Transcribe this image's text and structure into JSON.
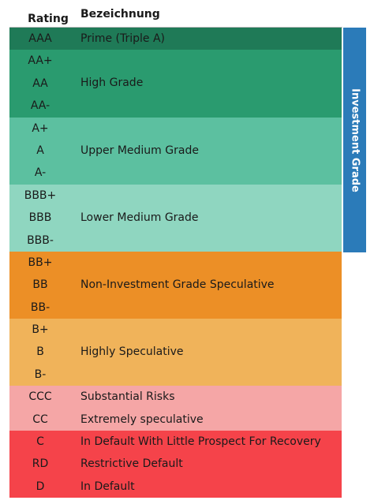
{
  "header": {
    "rating": "Rating",
    "bezeichnung": "Bezeichnung"
  },
  "side_label": "Investment Grade",
  "colors": {
    "aaa": "#1f7a57",
    "high": "#2a9b6f",
    "upper": "#5cc0a0",
    "lower": "#8fd6c0",
    "spec": "#ec8f26",
    "highly": "#f0b35a",
    "substantial": "#f5a6a6",
    "default": "#f5434a",
    "ig": "#2b7bb9"
  },
  "groups": [
    {
      "color_key": "aaa",
      "label": "Prime (Triple A)",
      "ratings": [
        "AAA"
      ]
    },
    {
      "color_key": "high",
      "label": "High Grade",
      "ratings": [
        "AA+",
        "AA",
        "AA-"
      ]
    },
    {
      "color_key": "upper",
      "label": "Upper Medium Grade",
      "ratings": [
        "A+",
        "A",
        "A-"
      ]
    },
    {
      "color_key": "lower",
      "label": "Lower Medium Grade",
      "ratings": [
        "BBB+",
        "BBB",
        "BBB-"
      ]
    },
    {
      "color_key": "spec",
      "label": "Non-Investment Grade Speculative",
      "ratings": [
        "BB+",
        "BB",
        "BB-"
      ]
    },
    {
      "color_key": "highly",
      "label": "Highly Speculative",
      "ratings": [
        "B+",
        "B",
        "B-"
      ]
    },
    {
      "color_key": "substantial",
      "rows": [
        {
          "rating": "CCC",
          "label": "Substantial Risks"
        },
        {
          "rating": "CC",
          "label": "Extremely speculative"
        }
      ]
    },
    {
      "color_key": "default",
      "rows": [
        {
          "rating": "C",
          "label": "In Default With Little Prospect For Recovery"
        },
        {
          "rating": "RD",
          "label": "Restrictive Default"
        },
        {
          "rating": "D",
          "label": "In Default"
        }
      ]
    }
  ]
}
